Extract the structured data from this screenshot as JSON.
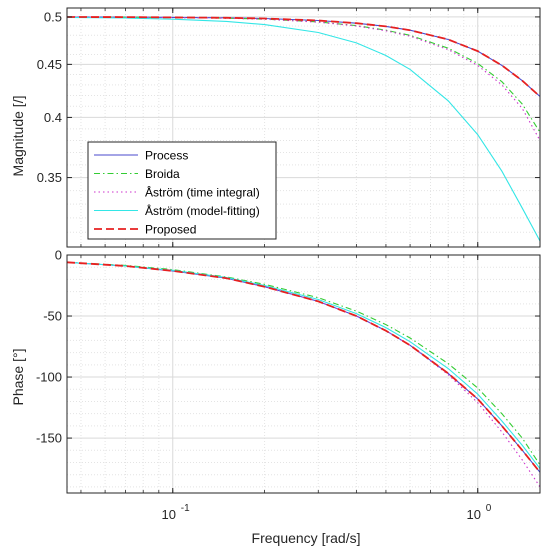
{
  "chart_data": {
    "type": "line",
    "xlabel": "Frequency [rad/s]",
    "x_scale": "log",
    "xlim": [
      0.045,
      1.6
    ],
    "x_ticks": [
      0.1,
      1.0
    ],
    "x_tick_labels": [
      "10",
      "10"
    ],
    "x_tick_exponents": [
      "-1",
      "0"
    ],
    "grid": true,
    "legend": {
      "location": "lower-left of top panel",
      "entries": [
        "Process",
        "Broida",
        "Åström (time integral)",
        "Åström (model-fitting)",
        "Proposed"
      ]
    },
    "series_styles": [
      {
        "name": "Process",
        "color": "#4a4acc",
        "dash": "solid"
      },
      {
        "name": "Broida",
        "color": "#33cc33",
        "dash": "dashdot"
      },
      {
        "name": "Åström (time integral)",
        "color": "#cc33cc",
        "dash": "dotted"
      },
      {
        "name": "Åström (model-fitting)",
        "color": "#33e6e6",
        "dash": "solid"
      },
      {
        "name": "Proposed",
        "color": "#e62020",
        "dash": "dashed"
      }
    ],
    "panels": [
      {
        "ylabel": "Magnitude [/]",
        "y_scale": "log",
        "ylim": [
          0.3,
          0.51
        ],
        "y_ticks": [
          0.35,
          0.4,
          0.45,
          0.5
        ],
        "y_tick_labels": [
          "0.35",
          "0.4",
          "0.45",
          "0.5"
        ],
        "x": [
          0.045,
          0.07,
          0.1,
          0.15,
          0.2,
          0.3,
          0.4,
          0.5,
          0.6,
          0.8,
          1.0,
          1.2,
          1.4,
          1.6
        ],
        "series": [
          {
            "name": "Process",
            "values": [
              0.4999,
              0.4998,
              0.4995,
              0.499,
              0.4982,
              0.496,
              0.4931,
              0.4896,
              0.4855,
              0.4755,
              0.4635,
              0.449,
              0.434,
              0.419
            ]
          },
          {
            "name": "Broida",
            "values": [
              0.4999,
              0.4997,
              0.4994,
              0.4986,
              0.4976,
              0.4945,
              0.4905,
              0.4855,
              0.48,
              0.4665,
              0.451,
              0.433,
              0.412,
              0.387
            ]
          },
          {
            "name": "Åström (time integral)",
            "values": [
              0.4999,
              0.4997,
              0.4994,
              0.4986,
              0.4975,
              0.4942,
              0.49,
              0.4848,
              0.479,
              0.465,
              0.449,
              0.43,
              0.408,
              0.38
            ]
          },
          {
            "name": "Åström (model-fitting)",
            "values": [
              0.4995,
              0.4988,
              0.4975,
              0.495,
              0.4915,
              0.483,
              0.472,
              0.459,
              0.445,
              0.415,
              0.385,
              0.355,
              0.327,
              0.304
            ]
          },
          {
            "name": "Proposed",
            "values": [
              0.4999,
              0.4998,
              0.4995,
              0.499,
              0.4982,
              0.496,
              0.4931,
              0.4896,
              0.4855,
              0.4755,
              0.4635,
              0.449,
              0.434,
              0.419
            ]
          }
        ]
      },
      {
        "ylabel": "Phase [°]",
        "y_scale": "linear",
        "ylim": [
          -195,
          0
        ],
        "y_ticks": [
          -150,
          -100,
          -50,
          0
        ],
        "y_tick_labels": [
          "-150",
          "-100",
          "-50",
          "0"
        ],
        "x": [
          0.045,
          0.07,
          0.1,
          0.15,
          0.2,
          0.3,
          0.4,
          0.5,
          0.6,
          0.8,
          1.0,
          1.2,
          1.4,
          1.6
        ],
        "series": [
          {
            "name": "Process",
            "values": [
              -6,
              -9,
              -13,
              -19,
              -26,
              -38,
              -50,
              -62,
              -74,
              -97,
              -118,
              -140,
              -160,
              -178
            ]
          },
          {
            "name": "Broida",
            "values": [
              -6,
              -8.5,
              -12,
              -18,
              -24,
              -35,
              -46,
              -57,
              -68,
              -89,
              -109,
              -130,
              -150,
              -172
            ]
          },
          {
            "name": "Åström (time integral)",
            "values": [
              -6,
              -9,
              -13,
              -19,
              -26,
              -38,
              -50,
              -62,
              -74,
              -98,
              -121,
              -145,
              -168,
              -190
            ]
          },
          {
            "name": "Åström (model-fitting)",
            "values": [
              -6,
              -9,
              -12.5,
              -18.5,
              -25,
              -36.5,
              -48,
              -59.5,
              -71,
              -93,
              -114,
              -136,
              -156,
              -175
            ]
          },
          {
            "name": "Proposed",
            "values": [
              -6,
              -9,
              -13,
              -19,
              -26,
              -38,
              -50,
              -62,
              -74,
              -97,
              -118,
              -140,
              -160,
              -178
            ]
          }
        ]
      }
    ]
  }
}
